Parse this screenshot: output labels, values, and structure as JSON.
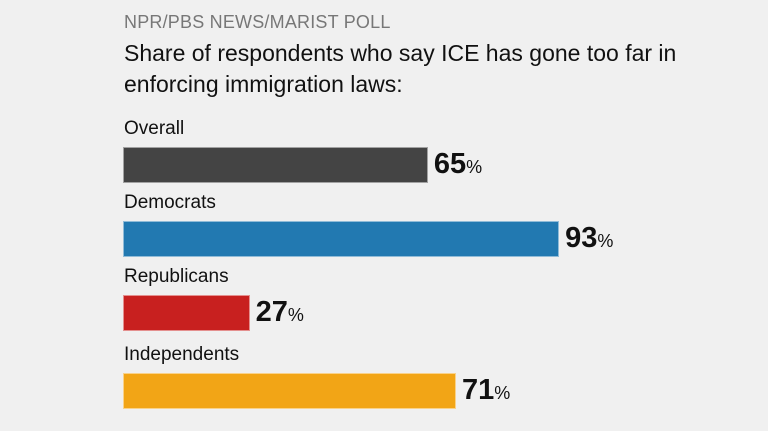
{
  "chart_data": {
    "type": "bar",
    "orientation": "horizontal",
    "source": "NPR/PBS NEWS/MARIST POLL",
    "title": "Share of respondents who say ICE has gone too far in enforcing immigration laws:",
    "unit": "%",
    "categories": [
      "Overall",
      "Democrats",
      "Republicans",
      "Independents"
    ],
    "values": [
      65,
      93,
      27,
      71
    ],
    "colors": [
      "#444444",
      "#2279b1",
      "#c8201f",
      "#f2a516"
    ],
    "xlim": [
      0,
      100
    ],
    "grid": false
  }
}
